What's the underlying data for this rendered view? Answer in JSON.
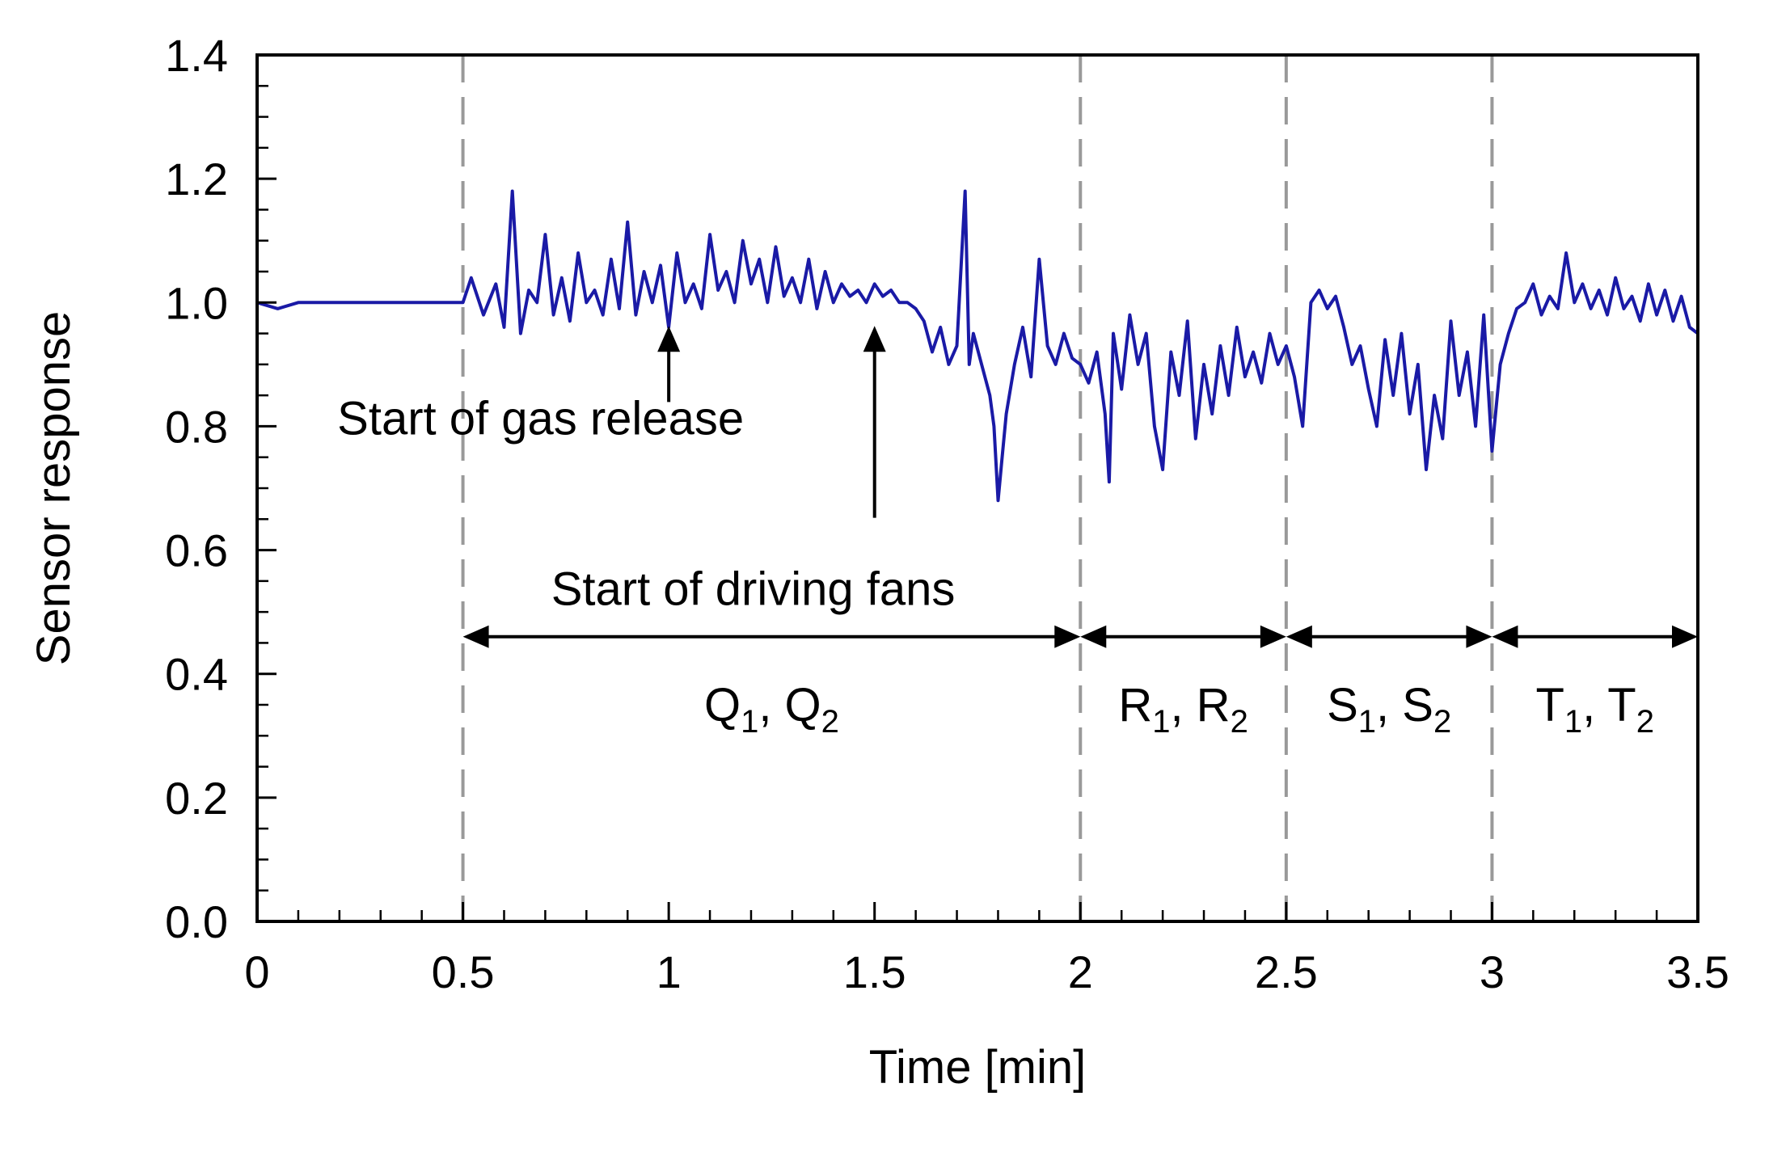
{
  "chart_data": {
    "type": "line",
    "title": "",
    "xlabel": "Time [min]",
    "ylabel": "Sensor response",
    "xlim": [
      0,
      3.5
    ],
    "ylim": [
      0,
      1.4
    ],
    "x_ticks": [
      "0",
      "0.5",
      "1",
      "1.5",
      "2",
      "2.5",
      "3",
      "3.5"
    ],
    "y_ticks": [
      "0.0",
      "0.2",
      "0.4",
      "0.6",
      "0.8",
      "1.0",
      "1.2",
      "1.4"
    ],
    "grid": false,
    "series_color": "#1a1aa6",
    "phase_lines_x": [
      0.5,
      2.0,
      2.5,
      3.0
    ],
    "annotations": [
      {
        "text": "Start of gas release",
        "arrow_x": 1.0,
        "arrow_y": 0.97,
        "label_x": 1.0,
        "label_y": 0.8
      },
      {
        "text": "Start of driving fans",
        "arrow_x": 1.5,
        "arrow_y": 0.97,
        "label_x": 1.5,
        "label_y": 0.6
      }
    ],
    "segments": [
      {
        "label": "Q",
        "sub1": "1",
        "sub2": "2",
        "from": 0.5,
        "to": 2.0,
        "y": 0.46
      },
      {
        "label": "R",
        "sub1": "1",
        "sub2": "2",
        "from": 2.0,
        "to": 2.5,
        "y": 0.46
      },
      {
        "label": "S",
        "sub1": "1",
        "sub2": "2",
        "from": 2.5,
        "to": 3.0,
        "y": 0.46
      },
      {
        "label": "T",
        "sub1": "1",
        "sub2": "2",
        "from": 3.0,
        "to": 3.5,
        "y": 0.46
      }
    ],
    "series": [
      {
        "name": "Sensor response",
        "x": [
          0.0,
          0.05,
          0.1,
          0.15,
          0.2,
          0.25,
          0.3,
          0.35,
          0.4,
          0.45,
          0.5,
          0.52,
          0.55,
          0.58,
          0.6,
          0.62,
          0.64,
          0.66,
          0.68,
          0.7,
          0.72,
          0.74,
          0.76,
          0.78,
          0.8,
          0.82,
          0.84,
          0.86,
          0.88,
          0.9,
          0.92,
          0.94,
          0.96,
          0.98,
          1.0,
          1.02,
          1.04,
          1.06,
          1.08,
          1.1,
          1.12,
          1.14,
          1.16,
          1.18,
          1.2,
          1.22,
          1.24,
          1.26,
          1.28,
          1.3,
          1.32,
          1.34,
          1.36,
          1.38,
          1.4,
          1.42,
          1.44,
          1.46,
          1.48,
          1.5,
          1.52,
          1.54,
          1.56,
          1.58,
          1.6,
          1.62,
          1.64,
          1.66,
          1.68,
          1.7,
          1.72,
          1.73,
          1.74,
          1.76,
          1.78,
          1.79,
          1.8,
          1.81,
          1.82,
          1.84,
          1.86,
          1.88,
          1.9,
          1.92,
          1.94,
          1.96,
          1.98,
          2.0,
          2.02,
          2.04,
          2.06,
          2.07,
          2.08,
          2.1,
          2.12,
          2.14,
          2.16,
          2.18,
          2.2,
          2.22,
          2.24,
          2.26,
          2.28,
          2.3,
          2.32,
          2.34,
          2.36,
          2.38,
          2.4,
          2.42,
          2.44,
          2.46,
          2.48,
          2.5,
          2.52,
          2.54,
          2.56,
          2.58,
          2.6,
          2.62,
          2.64,
          2.66,
          2.68,
          2.7,
          2.72,
          2.74,
          2.76,
          2.78,
          2.8,
          2.82,
          2.84,
          2.86,
          2.88,
          2.9,
          2.92,
          2.94,
          2.96,
          2.98,
          3.0,
          3.02,
          3.04,
          3.06,
          3.08,
          3.1,
          3.12,
          3.14,
          3.16,
          3.18,
          3.2,
          3.22,
          3.24,
          3.26,
          3.28,
          3.3,
          3.32,
          3.34,
          3.36,
          3.38,
          3.4,
          3.42,
          3.44,
          3.46,
          3.48,
          3.5
        ],
        "y": [
          1.0,
          0.99,
          1.0,
          1.0,
          1.0,
          1.0,
          1.0,
          1.0,
          1.0,
          1.0,
          1.0,
          1.04,
          0.98,
          1.03,
          0.96,
          1.18,
          0.95,
          1.02,
          1.0,
          1.11,
          0.98,
          1.04,
          0.97,
          1.08,
          1.0,
          1.02,
          0.98,
          1.07,
          0.99,
          1.13,
          0.98,
          1.05,
          1.0,
          1.06,
          0.96,
          1.08,
          1.0,
          1.03,
          0.99,
          1.11,
          1.02,
          1.05,
          1.0,
          1.1,
          1.03,
          1.07,
          1.0,
          1.09,
          1.01,
          1.04,
          1.0,
          1.07,
          0.99,
          1.05,
          1.0,
          1.03,
          1.01,
          1.02,
          1.0,
          1.03,
          1.01,
          1.02,
          1.0,
          1.0,
          0.99,
          0.97,
          0.92,
          0.96,
          0.9,
          0.93,
          1.18,
          0.9,
          0.95,
          0.9,
          0.85,
          0.8,
          0.68,
          0.75,
          0.82,
          0.9,
          0.96,
          0.88,
          1.07,
          0.93,
          0.9,
          0.95,
          0.91,
          0.9,
          0.87,
          0.92,
          0.82,
          0.71,
          0.95,
          0.86,
          0.98,
          0.9,
          0.95,
          0.8,
          0.73,
          0.92,
          0.85,
          0.97,
          0.78,
          0.9,
          0.82,
          0.93,
          0.85,
          0.96,
          0.88,
          0.92,
          0.87,
          0.95,
          0.9,
          0.93,
          0.88,
          0.8,
          1.0,
          1.02,
          0.99,
          1.01,
          0.96,
          0.9,
          0.93,
          0.86,
          0.8,
          0.94,
          0.85,
          0.95,
          0.82,
          0.9,
          0.73,
          0.85,
          0.78,
          0.97,
          0.85,
          0.92,
          0.8,
          0.98,
          0.76,
          0.9,
          0.95,
          0.99,
          1.0,
          1.03,
          0.98,
          1.01,
          0.99,
          1.08,
          1.0,
          1.03,
          0.99,
          1.02,
          0.98,
          1.04,
          0.99,
          1.01,
          0.97,
          1.03,
          0.98,
          1.02,
          0.97,
          1.01,
          0.96,
          0.95
        ]
      }
    ]
  }
}
